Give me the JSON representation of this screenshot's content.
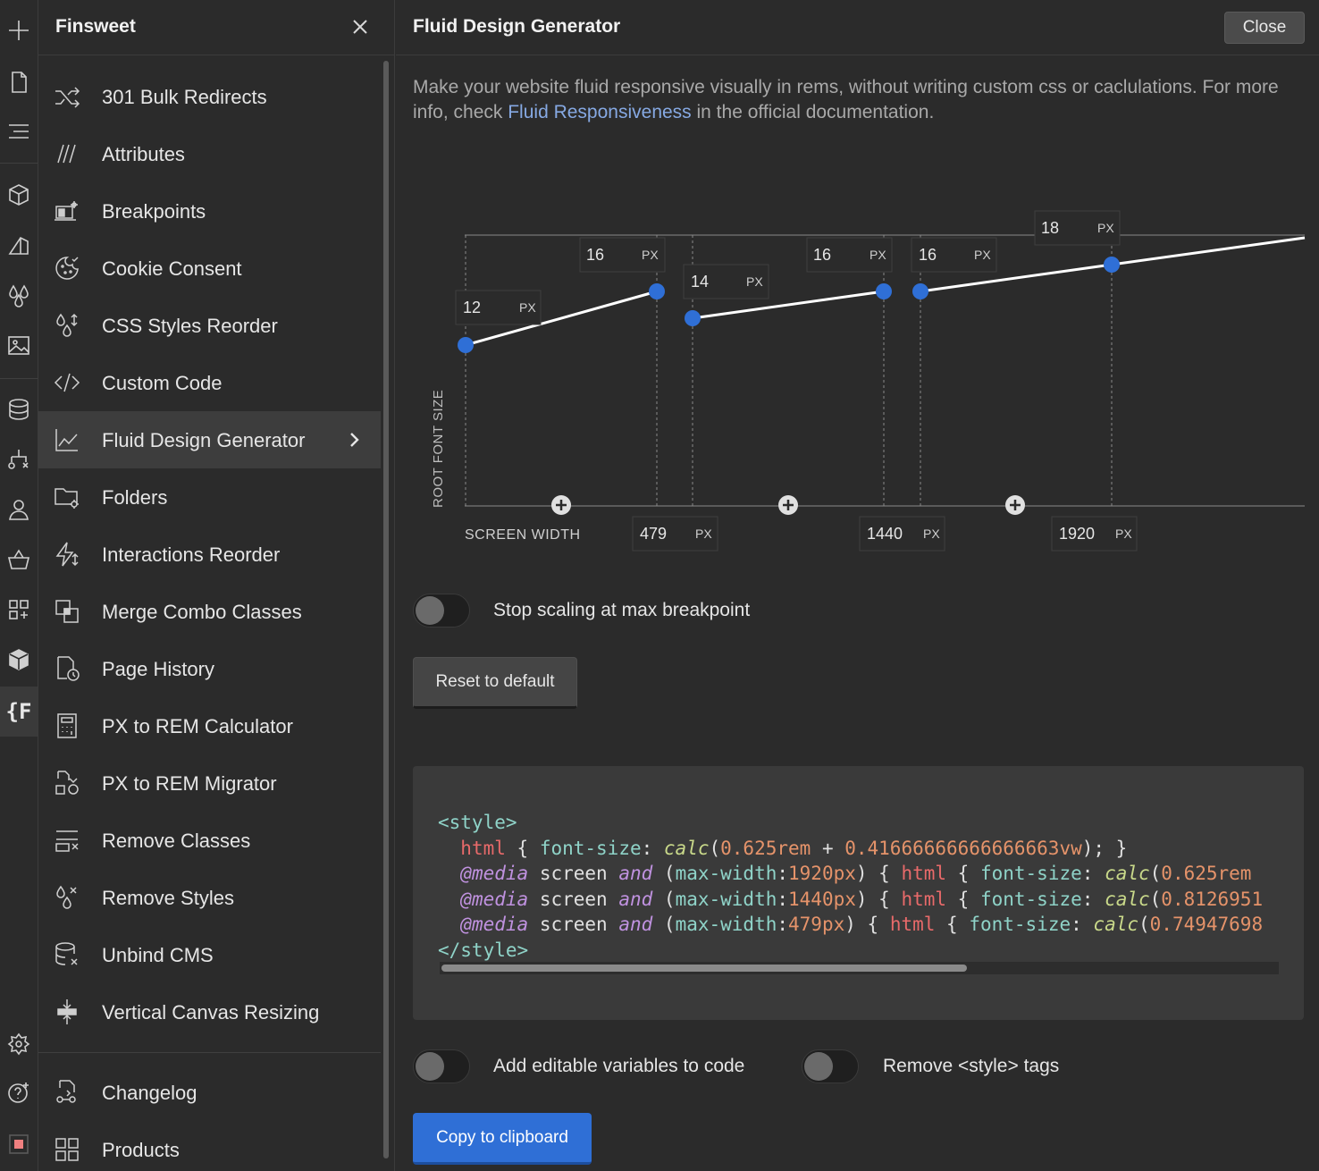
{
  "panel": {
    "title": "Finsweet",
    "items": [
      {
        "label": "301 Bulk Redirects",
        "icon": "shuffle-icon"
      },
      {
        "label": "Attributes",
        "icon": "attributes-icon"
      },
      {
        "label": "Breakpoints",
        "icon": "breakpoints-icon"
      },
      {
        "label": "Cookie Consent",
        "icon": "cookie-icon"
      },
      {
        "label": "CSS Styles Reorder",
        "icon": "styles-reorder-icon"
      },
      {
        "label": "Custom Code",
        "icon": "code-icon"
      },
      {
        "label": "Fluid Design Generator",
        "icon": "chart-line-icon",
        "active": true
      },
      {
        "label": "Folders",
        "icon": "folder-gear-icon"
      },
      {
        "label": "Interactions Reorder",
        "icon": "interactions-icon"
      },
      {
        "label": "Merge Combo Classes",
        "icon": "merge-icon"
      },
      {
        "label": "Page History",
        "icon": "page-history-icon"
      },
      {
        "label": "PX to REM Calculator",
        "icon": "calculator-icon"
      },
      {
        "label": "PX to REM Migrator",
        "icon": "migrator-icon"
      },
      {
        "label": "Remove Classes",
        "icon": "remove-classes-icon"
      },
      {
        "label": "Remove Styles",
        "icon": "remove-styles-icon"
      },
      {
        "label": "Unbind CMS",
        "icon": "unbind-cms-icon"
      },
      {
        "label": "Vertical Canvas Resizing",
        "icon": "vertical-resize-icon"
      }
    ],
    "footer_items": [
      {
        "label": "Changelog",
        "icon": "changelog-icon"
      },
      {
        "label": "Products",
        "icon": "grid-icon"
      }
    ]
  },
  "main": {
    "title": "Fluid Design Generator",
    "close_label": "Close",
    "description_pre": "Make your website fluid responsive visually in rems, without writing custom css or caclulations. For more info, check ",
    "description_link": "Fluid Responsiveness",
    "description_post": " in the official documentation.",
    "stop_scaling_label": "Stop scaling at max breakpoint",
    "reset_label": "Reset to default",
    "add_variables_label": "Add editable variables to code",
    "remove_style_tags_label": "Remove <style> tags",
    "copy_label": "Copy to clipboard"
  },
  "chart_data": {
    "type": "line",
    "xlabel": "SCREEN WIDTH",
    "ylabel": "ROOT FONT SIZE",
    "unit": "PX",
    "breakpoints": [
      "479",
      "1440",
      "1920"
    ],
    "segments": [
      {
        "start": "12",
        "end": "16"
      },
      {
        "start": "14",
        "end": "16"
      },
      {
        "start": "16",
        "end": "18"
      }
    ]
  },
  "code": {
    "open_tag": "<style>",
    "close_tag": "</style>",
    "line1": {
      "sel": "html",
      "prop": "font-size",
      "fn": "calc",
      "a": "0.625rem",
      "b": "0.41666666666666663vw"
    },
    "media_lines": [
      {
        "at": "@media",
        "media": "screen",
        "and": "and",
        "feature": "max-width",
        "value": "1920px",
        "sel": "html",
        "prop": "font-size",
        "fn": "calc",
        "a": "0.625rem"
      },
      {
        "at": "@media",
        "media": "screen",
        "and": "and",
        "feature": "max-width",
        "value": "1440px",
        "sel": "html",
        "prop": "font-size",
        "fn": "calc",
        "a": "0.8126951"
      },
      {
        "at": "@media",
        "media": "screen",
        "and": "and",
        "feature": "max-width",
        "value": "479px",
        "sel": "html",
        "prop": "font-size",
        "fn": "calc",
        "a": "0.74947698"
      }
    ]
  },
  "colors": {
    "accent": "#2f6fd6",
    "point": "#2f6fd6",
    "link": "#86a9e3"
  },
  "rail_icons": [
    "plus-icon",
    "page-icon",
    "navigator-icon",
    "components-icon",
    "style-selector-icon",
    "color-drops-icon",
    "assets-icon",
    "cms-icon",
    "logic-icon",
    "users-icon",
    "ecommerce-icon",
    "apps-icon",
    "box-icon",
    "finsweet-icon",
    "settings-icon",
    "help-icon",
    "record-icon"
  ]
}
